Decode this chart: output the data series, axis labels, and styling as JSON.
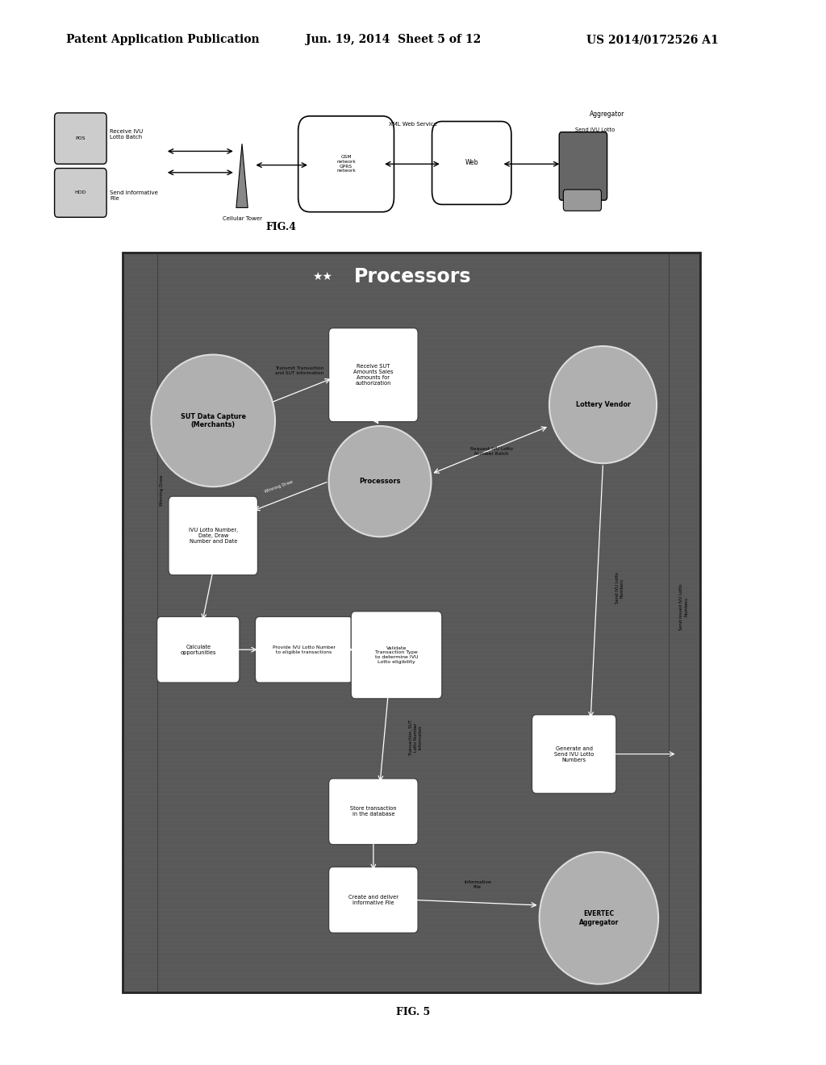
{
  "bg_color": "#ffffff",
  "header_text": "Patent Application Publication",
  "header_date": "Jun. 19, 2014  Sheet 5 of 12",
  "header_patent": "US 2014/0172526 A1",
  "fig4_label": "FIG.4",
  "fig5_label": "FIG. 5",
  "fig5_title": "Processors",
  "fig5_bg": "#606060"
}
